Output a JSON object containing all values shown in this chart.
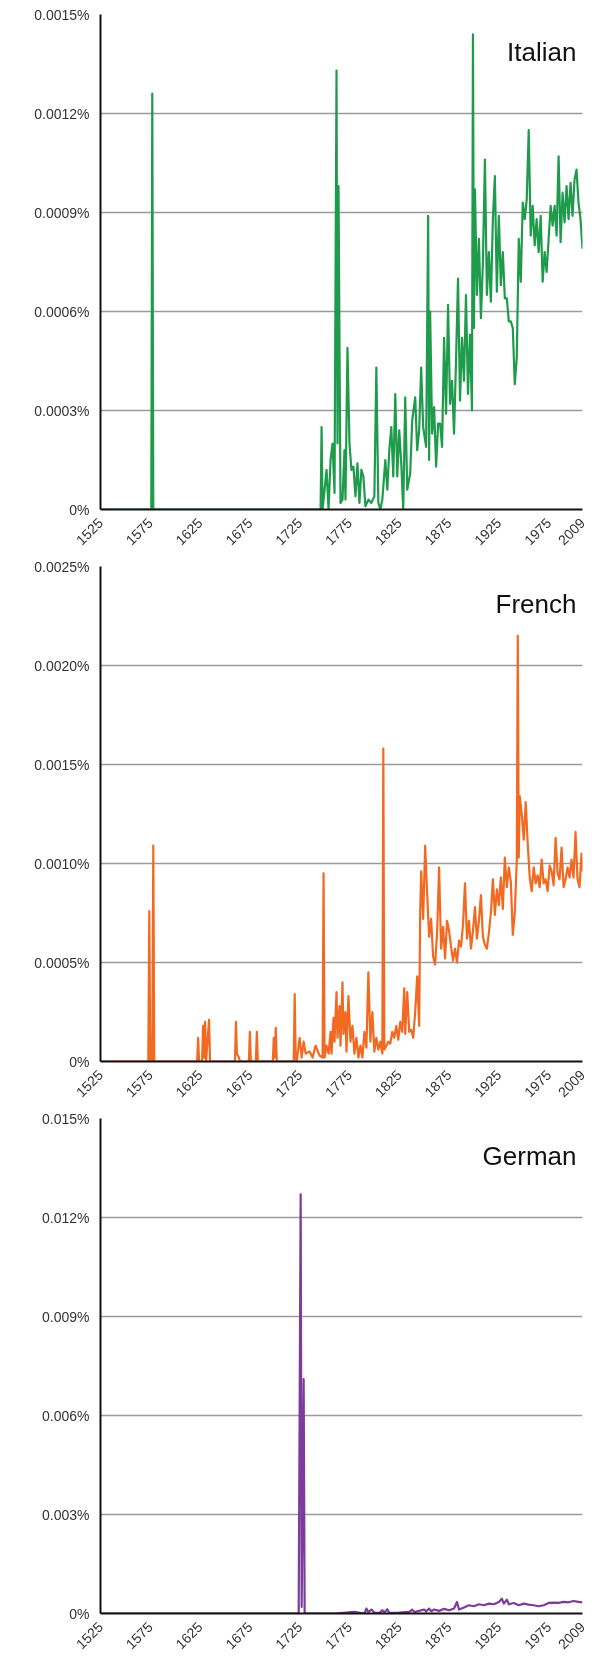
{
  "chart_data": [
    {
      "type": "line",
      "title": "Italian",
      "grid": "y",
      "xlim": [
        1525,
        2009
      ],
      "xticks": [
        1525,
        1575,
        1625,
        1675,
        1725,
        1775,
        1825,
        1875,
        1925,
        1975,
        2009
      ],
      "ylim": [
        0,
        0.0015
      ],
      "yticks": [
        {
          "value": 0,
          "label": "0%"
        },
        {
          "value": 0.0003,
          "label": "0.0003%"
        },
        {
          "value": 0.0006,
          "label": "0.0006%"
        },
        {
          "value": 0.0009,
          "label": "0.0009%"
        },
        {
          "value": 0.0012,
          "label": "0.0012%"
        },
        {
          "value": 0.0015,
          "label": "0.0015%"
        }
      ],
      "series": [
        {
          "color": "#1e9b4b",
          "x": [
            1525,
            1576,
            1577,
            1578,
            1746,
            1747,
            1748,
            1752,
            1754,
            1756,
            1758,
            1760,
            1762,
            1763,
            1764,
            1766,
            1768,
            1770,
            1771,
            1773,
            1775,
            1777,
            1779,
            1781,
            1783,
            1785,
            1787,
            1789,
            1791,
            1794,
            1797,
            1800,
            1802,
            1804,
            1806,
            1808,
            1811,
            1813,
            1815,
            1817,
            1819,
            1821,
            1823,
            1825,
            1827,
            1829,
            1831,
            1833,
            1836,
            1838,
            1841,
            1843,
            1845,
            1847,
            1849,
            1852,
            1854,
            1855,
            1856,
            1858,
            1860,
            1862,
            1864,
            1866,
            1868,
            1870,
            1872,
            1874,
            1876,
            1878,
            1880,
            1882,
            1884,
            1886,
            1888,
            1890,
            1892,
            1894,
            1896,
            1898,
            1899,
            1900,
            1901,
            1903,
            1905,
            1907,
            1909,
            1911,
            1913,
            1915,
            1917,
            1919,
            1921,
            1923,
            1925,
            1927,
            1929,
            1931,
            1933,
            1935,
            1937,
            1939,
            1941,
            1943,
            1945,
            1947,
            1949,
            1951,
            1953,
            1955,
            1957,
            1959,
            1961,
            1963,
            1965,
            1967,
            1969,
            1971,
            1973,
            1975,
            1977,
            1979,
            1981,
            1983,
            1985,
            1987,
            1989,
            1991,
            1993,
            1995,
            1997,
            1999,
            2001,
            2003,
            2005,
            2007,
            2009
          ],
          "values": [
            0,
            0,
            0.00126,
            0,
            0,
            0.00025,
            0,
            0.00012,
            0,
            0.00015,
            0.0002,
            5e-05,
            0.00133,
            0.0002,
            0.00098,
            2e-05,
            3e-05,
            0.00018,
            3e-05,
            0.00049,
            0.0002,
            0.00012,
            0.00013,
            4e-05,
            0.00014,
            2e-05,
            0.00012,
            0.0001,
            1e-05,
            3e-05,
            2e-05,
            4e-05,
            0.00043,
            2e-05,
            0,
            3e-05,
            0.00015,
            6e-05,
            0.00018,
            0.00025,
            0.0001,
            0.00035,
            0.0001,
            0.00024,
            0.00014,
            0,
            0.00034,
            6e-05,
            0.00011,
            0.00027,
            0.00034,
            0.00018,
            0.00024,
            0.00043,
            0.00025,
            0.00019,
            0.00089,
            0.00015,
            0.0006,
            0.00023,
            0.00031,
            0.00013,
            0.00026,
            0.00026,
            0.00019,
            0.00052,
            0.00029,
            0.00062,
            0.00032,
            0.00039,
            0.00023,
            0.00045,
            0.0007,
            0.00033,
            0.00052,
            0.00039,
            0.00065,
            0.00035,
            0.00053,
            0.0003,
            0.00144,
            0.00055,
            0.00097,
            0.00065,
            0.00082,
            0.00058,
            0.00075,
            0.00106,
            0.00065,
            0.00078,
            0.00063,
            0.00088,
            0.00101,
            0.00066,
            0.00089,
            0.00068,
            0.00078,
            0.00064,
            0.00064,
            0.00057,
            0.00057,
            0.00055,
            0.00038,
            0.00046,
            0.00082,
            0.00069,
            0.00093,
            0.00088,
            0.00094,
            0.00115,
            0.00083,
            0.00092,
            0.0008,
            0.00088,
            0.00078,
            0.00089,
            0.00069,
            0.00078,
            0.00072,
            0.00082,
            0.00092,
            0.00086,
            0.00092,
            0.00083,
            0.00107,
            0.00081,
            0.00096,
            0.00087,
            0.00098,
            0.00088,
            0.00099,
            0.00089,
            0.001,
            0.00103,
            0.00093,
            0.00088,
            0.00079
          ]
        }
      ]
    },
    {
      "type": "line",
      "title": "French",
      "grid": "y",
      "xlim": [
        1525,
        2009
      ],
      "xticks": [
        1525,
        1575,
        1625,
        1675,
        1725,
        1775,
        1825,
        1875,
        1925,
        1975,
        2009
      ],
      "ylim": [
        0,
        0.0025
      ],
      "yticks": [
        {
          "value": 0,
          "label": "0%"
        },
        {
          "value": 0.0005,
          "label": "0.0005%"
        },
        {
          "value": 0.001,
          "label": "0.0010%"
        },
        {
          "value": 0.0015,
          "label": "0.0015%"
        },
        {
          "value": 0.002,
          "label": "0.0020%"
        },
        {
          "value": 0.0025,
          "label": "0.0025%"
        }
      ],
      "series": [
        {
          "color": "#f26a21",
          "x": [
            1525,
            1573,
            1574,
            1575,
            1577,
            1578,
            1579,
            1622,
            1623,
            1624,
            1627,
            1628,
            1629,
            1630,
            1631,
            1634,
            1635,
            1660,
            1661,
            1662,
            1664,
            1665,
            1674,
            1675,
            1676,
            1681,
            1682,
            1683,
            1698,
            1699,
            1700,
            1701,
            1702,
            1719,
            1720,
            1721,
            1722,
            1725,
            1727,
            1729,
            1731,
            1735,
            1738,
            1741,
            1745,
            1748,
            1749,
            1750,
            1752,
            1754,
            1756,
            1757,
            1759,
            1760,
            1762,
            1763,
            1765,
            1766,
            1768,
            1769,
            1771,
            1772,
            1774,
            1776,
            1778,
            1780,
            1782,
            1784,
            1786,
            1788,
            1790,
            1792,
            1794,
            1796,
            1798,
            1800,
            1802,
            1804,
            1806,
            1808,
            1809,
            1810,
            1812,
            1814,
            1816,
            1818,
            1820,
            1822,
            1824,
            1826,
            1828,
            1830,
            1831,
            1833,
            1835,
            1837,
            1839,
            1841,
            1843,
            1845,
            1846,
            1847,
            1849,
            1851,
            1853,
            1855,
            1857,
            1859,
            1861,
            1863,
            1865,
            1867,
            1869,
            1871,
            1873,
            1875,
            1877,
            1879,
            1881,
            1883,
            1885,
            1887,
            1889,
            1891,
            1893,
            1895,
            1897,
            1899,
            1901,
            1903,
            1905,
            1907,
            1909,
            1911,
            1913,
            1915,
            1917,
            1919,
            1921,
            1923,
            1925,
            1927,
            1929,
            1931,
            1933,
            1935,
            1937,
            1939,
            1941,
            1943,
            1944,
            1945,
            1946,
            1948,
            1950,
            1952,
            1954,
            1956,
            1958,
            1960,
            1962,
            1964,
            1966,
            1968,
            1970,
            1972,
            1974,
            1976,
            1978,
            1980,
            1982,
            1984,
            1986,
            1988,
            1990,
            1992,
            1994,
            1996,
            1998,
            2000,
            2002,
            2004,
            2006,
            2008,
            2009
          ],
          "values": [
            0,
            0,
            0.00076,
            0,
            0,
            0.00109,
            0,
            0,
            0.00012,
            0,
            0,
            0.00018,
            2e-05,
            0.0002,
            0,
            0.00021,
            0,
            0,
            0.0002,
            4e-05,
            2e-05,
            0,
            0,
            0.00015,
            0,
            0,
            0.00015,
            0,
            0,
            0.00012,
            2e-05,
            0.00017,
            0,
            0,
            0.00034,
            2e-05,
            0,
            0.00012,
            2e-05,
            0.0001,
            4e-05,
            5e-05,
            2e-05,
            8e-05,
            3e-05,
            2e-05,
            0.00095,
            2e-05,
            8e-05,
            4e-05,
            0.00015,
            4e-05,
            0.00022,
            0.0001,
            0.00035,
            0.00012,
            0.00028,
            8e-05,
            0.0004,
            0.00014,
            0.00025,
            5e-05,
            0.00033,
            0.0001,
            0.00018,
            4e-05,
            0.00012,
            2e-05,
            8e-05,
            2e-05,
            0.00015,
            7e-05,
            0.00045,
            0.0001,
            0.00025,
            5e-05,
            0.00012,
            6e-05,
            0.0001,
            4e-05,
            0.00158,
            6e-05,
            8e-05,
            0.0001,
            9e-05,
            0.00015,
            0.00012,
            0.00018,
            0.00011,
            0.0002,
            0.00015,
            0.00037,
            0.00014,
            0.00035,
            0.00015,
            0.00016,
            0.00012,
            0.00025,
            0.00043,
            0.00018,
            0.00075,
            0.00096,
            0.00072,
            0.00109,
            0.00085,
            0.00063,
            0.00072,
            0.00053,
            0.00049,
            0.00065,
            0.00098,
            0.00057,
            0.00068,
            0.00052,
            0.00071,
            0.00066,
            0.00058,
            0.00051,
            0.00057,
            0.0005,
            0.00061,
            0.00058,
            0.00069,
            0.0009,
            0.00062,
            0.00071,
            0.00057,
            0.00066,
            0.00078,
            0.00062,
            0.00071,
            0.00084,
            0.00063,
            0.00059,
            0.00057,
            0.00065,
            0.00075,
            0.00092,
            0.00074,
            0.00087,
            0.00079,
            0.00093,
            0.00077,
            0.00103,
            0.00088,
            0.00098,
            0.00091,
            0.00064,
            0.00075,
            0.00101,
            0.00215,
            0.00103,
            0.00134,
            0.00125,
            0.00112,
            0.00131,
            0.0011,
            0.00093,
            0.00086,
            0.00098,
            0.0009,
            0.00094,
            0.00088,
            0.00102,
            0.0009,
            0.00092,
            0.00086,
            0.00099,
            0.00096,
            0.00089,
            0.00113,
            0.00095,
            0.00092,
            0.00108,
            0.00088,
            0.00092,
            0.00098,
            0.00093,
            0.00102,
            0.00093,
            0.00116,
            0.00092,
            0.00088,
            0.00105,
            0.00096
          ]
        }
      ]
    },
    {
      "type": "line",
      "title": "German",
      "grid": "y",
      "xlim": [
        1525,
        2009
      ],
      "xticks": [
        1525,
        1575,
        1625,
        1675,
        1725,
        1775,
        1825,
        1875,
        1925,
        1975,
        2009
      ],
      "ylim": [
        0,
        0.015
      ],
      "yticks": [
        {
          "value": 0,
          "label": "0%"
        },
        {
          "value": 0.003,
          "label": "0.003%"
        },
        {
          "value": 0.006,
          "label": "0.006%"
        },
        {
          "value": 0.009,
          "label": "0.009%"
        },
        {
          "value": 0.012,
          "label": "0.012%"
        },
        {
          "value": 0.015,
          "label": "0.015%"
        }
      ],
      "series": [
        {
          "color": "#7d3c9c",
          "x": [
            1525,
            1724,
            1726,
            1727,
            1729,
            1730,
            1760,
            1780,
            1790,
            1792,
            1794,
            1797,
            1800,
            1805,
            1808,
            1810,
            1813,
            1815,
            1825,
            1835,
            1838,
            1840,
            1845,
            1850,
            1852,
            1855,
            1857,
            1860,
            1865,
            1870,
            1875,
            1880,
            1883,
            1885,
            1890,
            1895,
            1900,
            1905,
            1910,
            1915,
            1920,
            1925,
            1928,
            1930,
            1933,
            1935,
            1940,
            1945,
            1950,
            1955,
            1960,
            1965,
            1970,
            1975,
            1980,
            1985,
            1990,
            1995,
            2000,
            2005,
            2009
          ],
          "values": [
            0,
            0,
            0.0127,
            0.0002,
            0.0071,
            0,
            0,
            5e-05,
            0,
            0.00015,
            4e-05,
            0.00012,
            3e-05,
            2e-05,
            0.0001,
            3e-05,
            0.00013,
            2e-05,
            3e-05,
            5e-05,
            0.00012,
            4e-05,
            8e-05,
            0.00012,
            6e-05,
            0.00015,
            7e-05,
            0.00012,
            8e-05,
            0.00014,
            0.0001,
            0.00015,
            0.00035,
            0.00012,
            0.00018,
            0.00025,
            0.00022,
            0.00028,
            0.00025,
            0.0003,
            0.00028,
            0.00035,
            0.00045,
            0.0003,
            0.00042,
            0.00028,
            0.00032,
            0.00025,
            0.0003,
            0.00027,
            0.00025,
            0.00022,
            0.00025,
            0.00032,
            0.00033,
            0.00032,
            0.00035,
            0.00034,
            0.00038,
            0.00035,
            0.00034
          ]
        }
      ]
    }
  ]
}
